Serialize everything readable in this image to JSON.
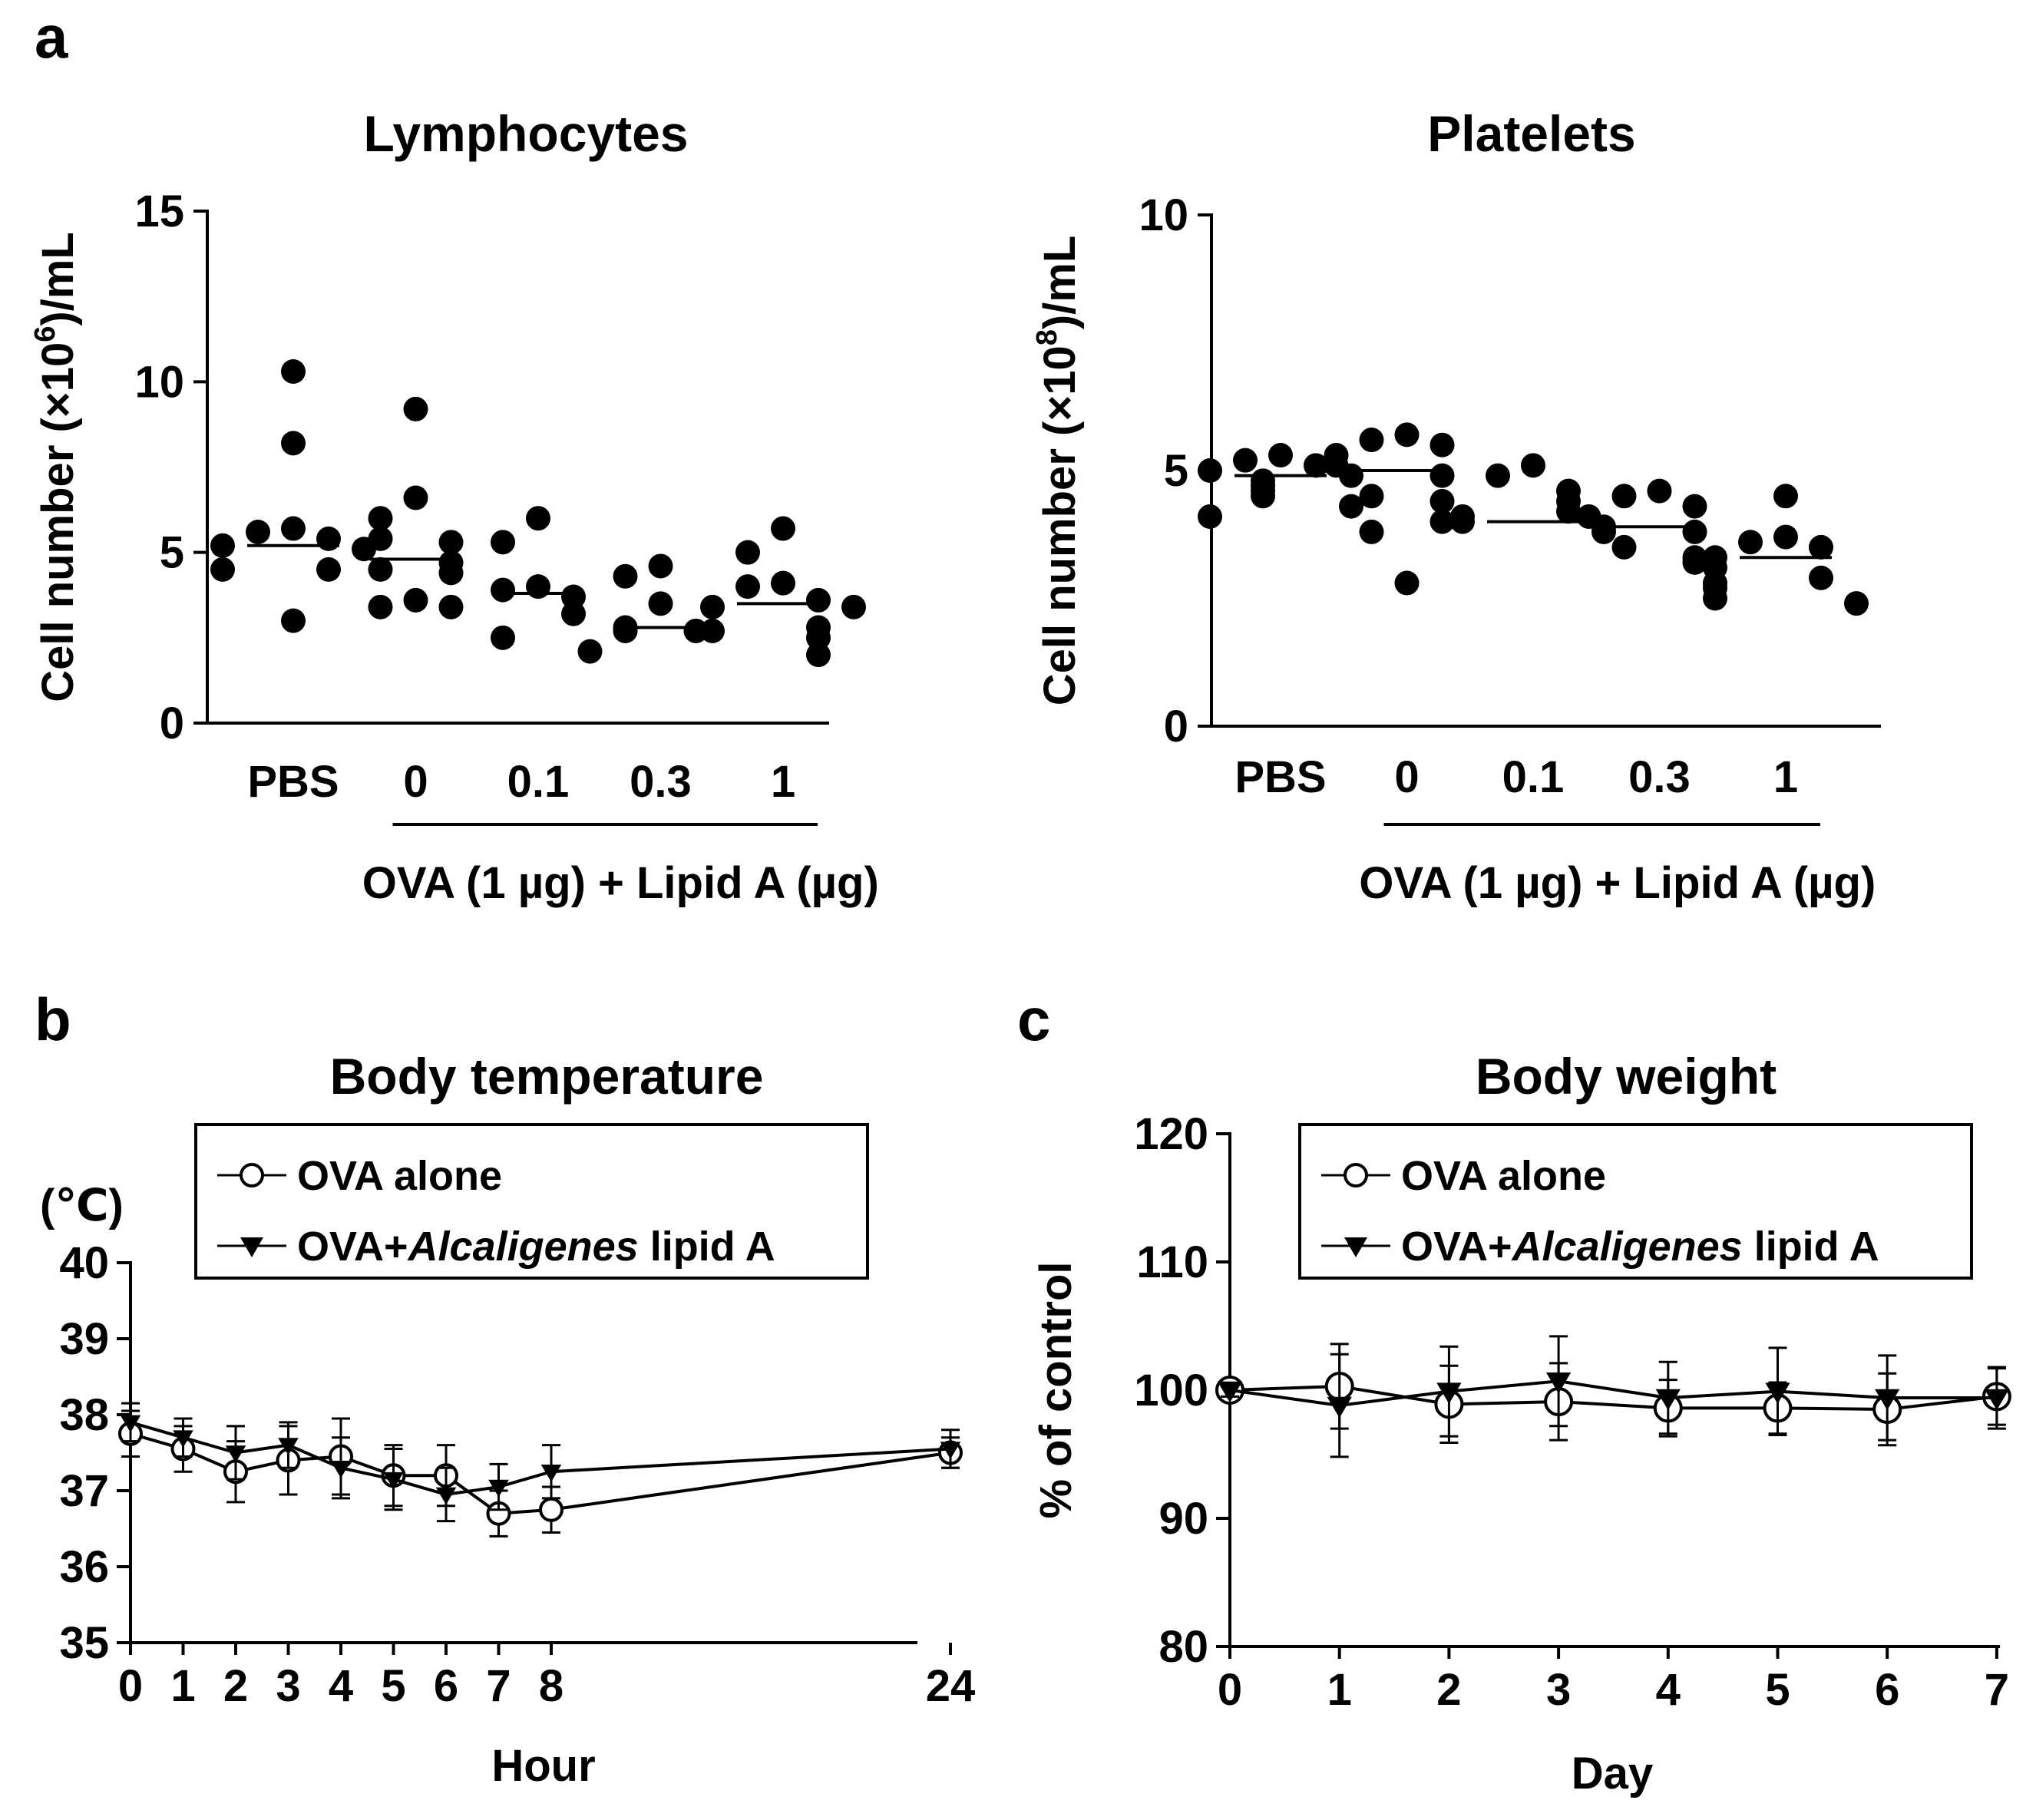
{
  "chart_data": [
    {
      "panel": "a",
      "type": "scatter",
      "title": "Lymphocytes",
      "ylabel": "Cell number (×10",
      "ylabel_exponent": "6",
      "ylabel_suffix": ")/mL",
      "xlabel": "OVA (1 µg) + Lipid A (µg)",
      "ylim": [
        0,
        15
      ],
      "yticks": [
        "0",
        "5",
        "10",
        "15"
      ],
      "categories": [
        "PBS",
        "0",
        "0.1",
        "0.3",
        "1"
      ],
      "groups": [
        {
          "category": "PBS",
          "points": [
            10.3,
            8.2,
            5.7,
            5.6,
            5.4,
            5.2,
            5.1,
            4.5,
            4.5,
            3.0
          ],
          "mean": 5.2
        },
        {
          "category": "0",
          "points": [
            9.2,
            6.6,
            6.0,
            5.4,
            5.3,
            4.7,
            4.5,
            4.4,
            3.6,
            3.4,
            3.4
          ],
          "mean": 4.8
        },
        {
          "category": "0.1",
          "points": [
            6.0,
            5.3,
            4.0,
            3.9,
            3.7,
            3.2,
            2.5
          ],
          "mean": 3.8
        },
        {
          "category": "0.3",
          "points": [
            4.6,
            4.3,
            3.5,
            2.8,
            2.7,
            2.7,
            2.1
          ],
          "mean": 2.8
        },
        {
          "category": "1",
          "points": [
            5.7,
            5.0,
            4.1,
            4.0,
            3.6,
            3.4,
            3.4,
            2.8,
            2.7,
            2.5,
            2.0
          ],
          "mean": 3.5
        }
      ]
    },
    {
      "panel": "a",
      "type": "scatter",
      "title": "Platelets",
      "ylabel": "Cell number (×10",
      "ylabel_exponent": "8",
      "ylabel_suffix": ")/mL",
      "xlabel": "OVA (1 µg) + Lipid A (µg)",
      "ylim": [
        0,
        10
      ],
      "yticks": [
        "0",
        "5",
        "10"
      ],
      "categories": [
        "PBS",
        "0",
        "0.1",
        "0.3",
        "1"
      ],
      "groups": [
        {
          "category": "PBS",
          "points": [
            5.3,
            5.2,
            5.1,
            5.0,
            4.9,
            4.8,
            4.7,
            4.6,
            4.5,
            4.3,
            4.1
          ],
          "mean": 4.9
        },
        {
          "category": "0",
          "points": [
            5.7,
            5.6,
            5.5,
            5.3,
            5.1,
            4.9,
            4.5,
            4.4,
            4.0,
            3.8,
            2.8
          ],
          "mean": 5.0
        },
        {
          "category": "0.1",
          "points": [
            5.1,
            4.9,
            4.6,
            4.4,
            4.2,
            4.1,
            4.0,
            3.9,
            3.8
          ],
          "mean": 4.0
        },
        {
          "category": "0.3",
          "points": [
            4.6,
            4.5,
            4.3,
            4.1,
            3.8,
            3.5,
            3.3,
            3.2
          ],
          "mean": 3.9
        },
        {
          "category": "1",
          "points": [
            4.5,
            3.7,
            3.6,
            3.5,
            3.3,
            3.1,
            2.9,
            2.8,
            2.7,
            2.5,
            2.4
          ],
          "mean": 3.3
        }
      ]
    },
    {
      "panel": "b",
      "type": "line",
      "title": "Body temperature",
      "unit_label": "(℃)",
      "xlabel": "Hour",
      "ylabel": "",
      "xlim": [
        0,
        24
      ],
      "ylim": [
        35,
        40
      ],
      "xticks": [
        0,
        1,
        2,
        3,
        4,
        5,
        6,
        7,
        8,
        24
      ],
      "yticks": [
        35,
        36,
        37,
        38,
        39,
        40
      ],
      "series": [
        {
          "name": "OVA alone",
          "marker": "open-circle",
          "x": [
            0,
            1,
            2,
            3,
            4,
            5,
            6,
            7,
            8,
            24
          ],
          "values": [
            37.75,
            37.55,
            37.25,
            37.4,
            37.45,
            37.2,
            37.2,
            36.7,
            36.75,
            37.5
          ],
          "errors": [
            0.3,
            0.3,
            0.4,
            0.45,
            0.5,
            0.4,
            0.4,
            0.3,
            0.3,
            0.2
          ]
        },
        {
          "name": "OVA+",
          "name_italic": "Alcaligenes",
          "name_suffix": " lipid A",
          "marker": "filled-triangle-down",
          "x": [
            0,
            1,
            2,
            3,
            4,
            5,
            6,
            7,
            8,
            24
          ],
          "values": [
            37.9,
            37.7,
            37.5,
            37.6,
            37.3,
            37.15,
            36.95,
            37.05,
            37.25,
            37.55
          ],
          "errors": [
            0.25,
            0.25,
            0.35,
            0.3,
            0.4,
            0.4,
            0.35,
            0.3,
            0.35,
            0.25
          ]
        }
      ]
    },
    {
      "panel": "c",
      "type": "line",
      "title": "Body weight",
      "xlabel": "Day",
      "ylabel": "% of control",
      "xlim": [
        0,
        7
      ],
      "ylim": [
        80,
        120
      ],
      "xticks": [
        0,
        1,
        2,
        3,
        4,
        5,
        6,
        7
      ],
      "yticks": [
        80,
        90,
        100,
        110,
        120
      ],
      "series": [
        {
          "name": "OVA alone",
          "marker": "open-circle",
          "x": [
            0,
            1,
            2,
            3,
            4,
            5,
            6,
            7
          ],
          "values": [
            100.0,
            100.3,
            98.9,
            99.1,
            98.6,
            98.6,
            98.5,
            99.5
          ],
          "errors": [
            0.5,
            3.3,
            3.0,
            3.0,
            2.2,
            2.0,
            2.8,
            2.2
          ]
        },
        {
          "name": "OVA+",
          "name_italic": "Alcaligenes",
          "name_suffix": " lipid A",
          "marker": "filled-triangle-down",
          "x": [
            0,
            1,
            2,
            3,
            4,
            5,
            6,
            7
          ],
          "values": [
            100.0,
            98.8,
            99.9,
            100.7,
            99.4,
            99.9,
            99.4,
            99.4
          ],
          "errors": [
            0.5,
            4.0,
            3.5,
            3.5,
            2.8,
            3.4,
            3.3,
            2.4
          ]
        }
      ]
    }
  ]
}
